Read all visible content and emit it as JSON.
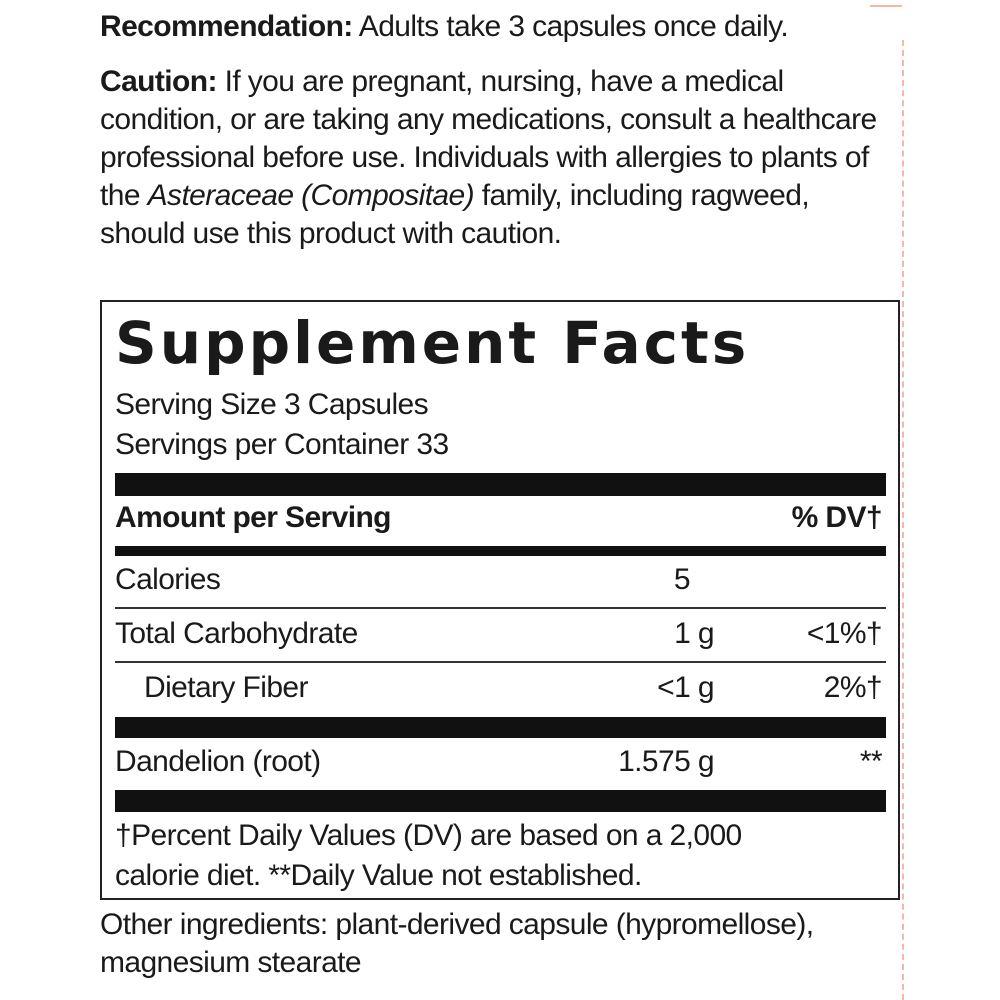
{
  "recommendation": {
    "label": "Recommendation:",
    "text": " Adults take 3 capsules once daily."
  },
  "caution": {
    "label": "Caution:",
    "text1": " If you are pregnant, nursing, have a medical condition, or are taking any medications, consult a healthcare professional before use. Individuals with allergies to plants of the ",
    "italic": "Asteraceae (Compositae)",
    "text2": " family, including ragweed, should use this product with caution."
  },
  "facts": {
    "title": "Supplement Facts",
    "serving_size": "Serving Size 3 Capsules",
    "servings_per_container": "Servings per Container 33",
    "header": {
      "amount": "Amount per Serving",
      "dv": "% DV†"
    },
    "rows": [
      {
        "name": "Calories",
        "amount": "5",
        "dv": ""
      },
      {
        "name": "Total Carbohydrate",
        "amount": "1 g",
        "dv": "<1%†"
      },
      {
        "name": "Dietary Fiber",
        "amount": "<1 g",
        "dv": "2%†"
      },
      {
        "name": "Dandelion (root)",
        "amount": "1.575 g",
        "dv": "**"
      }
    ],
    "footnote1": "†Percent Daily Values (DV) are based on a 2,000",
    "footnote2": "calorie diet. **Daily Value not established."
  },
  "other_ingredients": "Other ingredients: plant-derived capsule (hypromellose), magnesium stearate",
  "colors": {
    "border_dash": "#f4b8a8",
    "text": "#1a1a1a"
  }
}
